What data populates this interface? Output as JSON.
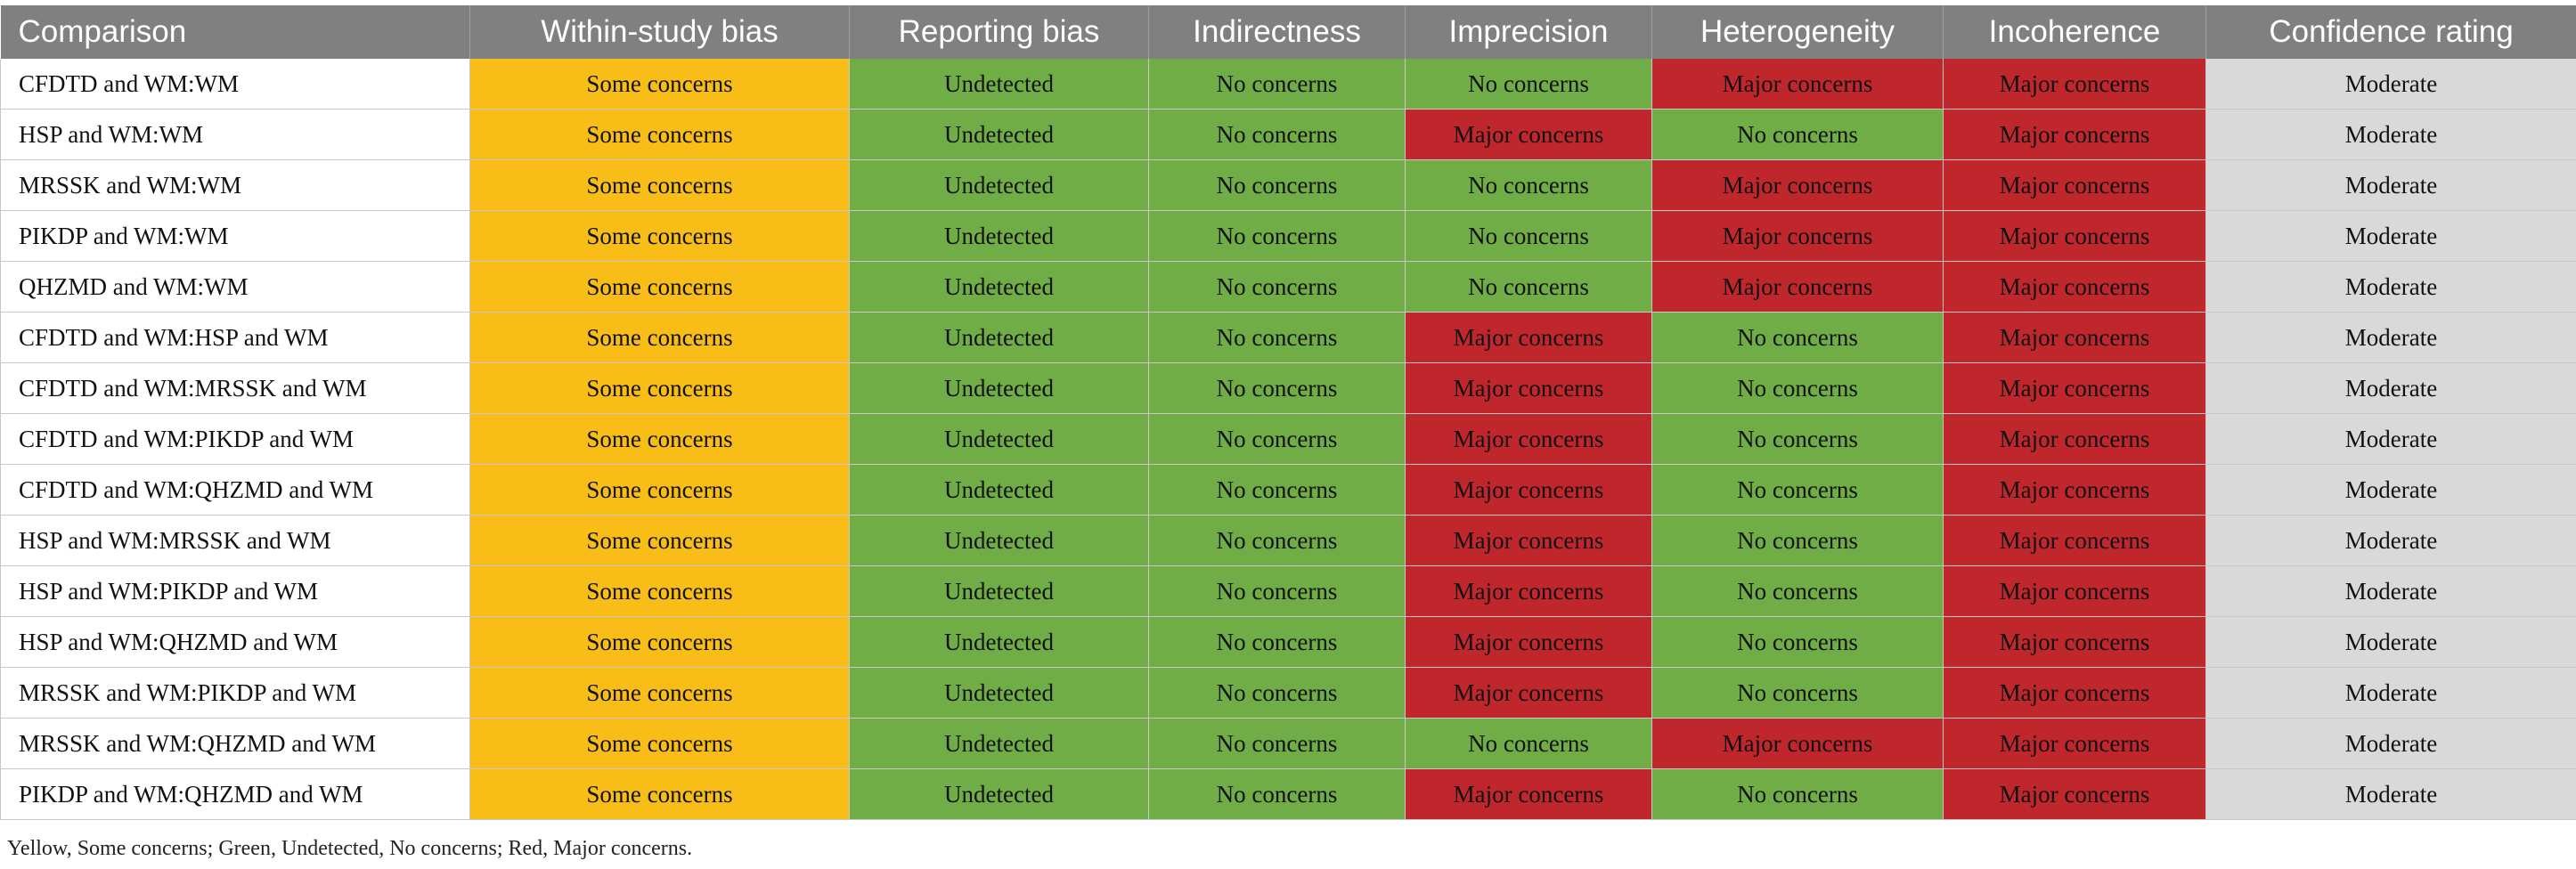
{
  "columns": [
    "Comparison",
    "Within-study bias",
    "Reporting bias",
    "Indirectness",
    "Imprecision",
    "Heterogeneity",
    "Incoherence",
    "Confidence rating"
  ],
  "colors": {
    "Some concerns": "#f8be17",
    "Undetected": "#70ad47",
    "No concerns": "#70ad47",
    "Major concerns": "#c0272d",
    "Moderate": "#d9d9d9"
  },
  "rows": [
    [
      "CFDTD and WM:WM",
      "Some concerns",
      "Undetected",
      "No concerns",
      "No concerns",
      "Major concerns",
      "Major concerns",
      "Moderate"
    ],
    [
      "HSP and WM:WM",
      "Some concerns",
      "Undetected",
      "No concerns",
      "Major concerns",
      "No concerns",
      "Major concerns",
      "Moderate"
    ],
    [
      "MRSSK and WM:WM",
      "Some concerns",
      "Undetected",
      "No concerns",
      "No concerns",
      "Major concerns",
      "Major concerns",
      "Moderate"
    ],
    [
      "PIKDP and WM:WM",
      "Some concerns",
      "Undetected",
      "No concerns",
      "No concerns",
      "Major concerns",
      "Major concerns",
      "Moderate"
    ],
    [
      "QHZMD and WM:WM",
      "Some concerns",
      "Undetected",
      "No concerns",
      "No concerns",
      "Major concerns",
      "Major concerns",
      "Moderate"
    ],
    [
      "CFDTD and WM:HSP and WM",
      "Some concerns",
      "Undetected",
      "No concerns",
      "Major concerns",
      "No concerns",
      "Major concerns",
      "Moderate"
    ],
    [
      "CFDTD and WM:MRSSK and WM",
      "Some concerns",
      "Undetected",
      "No concerns",
      "Major concerns",
      "No concerns",
      "Major concerns",
      "Moderate"
    ],
    [
      "CFDTD and WM:PIKDP and WM",
      "Some concerns",
      "Undetected",
      "No concerns",
      "Major concerns",
      "No concerns",
      "Major concerns",
      "Moderate"
    ],
    [
      "CFDTD and WM:QHZMD and WM",
      "Some concerns",
      "Undetected",
      "No concerns",
      "Major concerns",
      "No concerns",
      "Major concerns",
      "Moderate"
    ],
    [
      "HSP and WM:MRSSK and WM",
      "Some concerns",
      "Undetected",
      "No concerns",
      "Major concerns",
      "No concerns",
      "Major concerns",
      "Moderate"
    ],
    [
      "HSP and WM:PIKDP and WM",
      "Some concerns",
      "Undetected",
      "No concerns",
      "Major concerns",
      "No concerns",
      "Major concerns",
      "Moderate"
    ],
    [
      "HSP and WM:QHZMD and WM",
      "Some concerns",
      "Undetected",
      "No concerns",
      "Major concerns",
      "No concerns",
      "Major concerns",
      "Moderate"
    ],
    [
      "MRSSK and WM:PIKDP and WM",
      "Some concerns",
      "Undetected",
      "No concerns",
      "Major concerns",
      "No concerns",
      "Major concerns",
      "Moderate"
    ],
    [
      "MRSSK and WM:QHZMD and WM",
      "Some concerns",
      "Undetected",
      "No concerns",
      "No concerns",
      "Major concerns",
      "Major concerns",
      "Moderate"
    ],
    [
      "PIKDP and WM:QHZMD and WM",
      "Some concerns",
      "Undetected",
      "No concerns",
      "Major concerns",
      "No concerns",
      "Major concerns",
      "Moderate"
    ]
  ],
  "footnote": "Yellow, Some concerns; Green, Undetected, No concerns; Red, Major concerns."
}
